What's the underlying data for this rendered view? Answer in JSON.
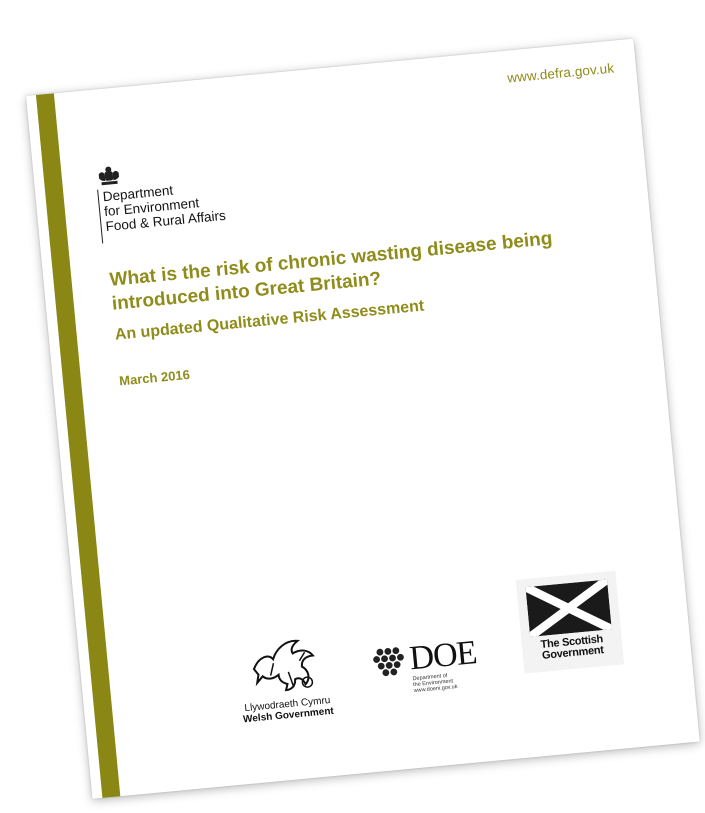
{
  "header": {
    "url": "www.defra.gov.uk"
  },
  "department": {
    "icon": "royal-crest-icon",
    "line1": "Department",
    "line2": "for Environment",
    "line3": "Food & Rural Affairs"
  },
  "document": {
    "title": "What is the risk of chronic wasting disease being introduced into Great Britain?",
    "subtitle": "An updated Qualitative Risk Assessment",
    "date": "March 2016"
  },
  "partners": {
    "welsh": {
      "icon": "welsh-dragon-icon",
      "line1": "Llywodraeth Cymru",
      "line2": "Welsh Government"
    },
    "doe": {
      "icon": "doe-hexagon-icon",
      "word": "DOE",
      "sub1": "Department of",
      "sub2": "the Environment",
      "sub3": "www.doeni.gov.uk"
    },
    "scottish": {
      "icon": "saltire-icon",
      "line1": "The Scottish",
      "line2": "Government"
    }
  },
  "colors": {
    "accent": "#8f8c1a",
    "stripe": "#8a8715"
  }
}
